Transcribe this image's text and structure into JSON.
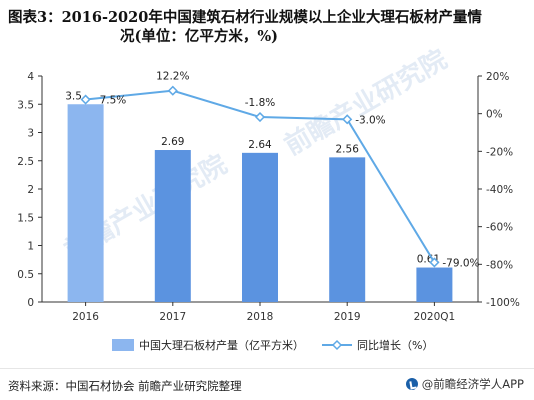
{
  "title": {
    "line1": "图表3：2016-2020年中国建筑石材行业规模以上企业大理石板材产量情",
    "line2": "况(单位：亿平方米，%)"
  },
  "source_text": "资料来源：中国石材协会 前瞻产业研究院整理",
  "brand_text": "@前瞻经济学人APP",
  "watermark": "前瞻产业研究院",
  "colors": {
    "bar": "#5b93e0",
    "bar_light": "#8cb6ef",
    "line": "#5fa9e6",
    "marker_fill": "#ffffff",
    "axis": "#333333",
    "tick_text": "#333333"
  },
  "chart_data": {
    "type": "bar",
    "categories": [
      "2016",
      "2017",
      "2018",
      "2019",
      "2020Q1"
    ],
    "series": [
      {
        "name": "中国大理石板材产量（亿平方米）",
        "kind": "bar",
        "axis": "left",
        "values": [
          3.5,
          2.69,
          2.64,
          2.56,
          0.61
        ],
        "labels": [
          "3.5",
          "2.69",
          "2.64",
          "2.56",
          "0.61"
        ]
      },
      {
        "name": "同比增长（%）",
        "kind": "line",
        "axis": "right",
        "values": [
          7.5,
          12.2,
          -1.8,
          -3.0,
          -79.0
        ],
        "labels": [
          "7.5%",
          "12.2%",
          "-1.8%",
          "-3.0%",
          "-79.0%"
        ]
      }
    ],
    "y_left": {
      "min": 0,
      "max": 4,
      "ticks": [
        "0",
        "0.5",
        "1",
        "1.5",
        "2",
        "2.5",
        "3",
        "3.5",
        "4"
      ]
    },
    "y_right": {
      "min": -100,
      "max": 20,
      "ticks": [
        "-100%",
        "-80%",
        "-60%",
        "-40%",
        "-20%",
        "0%",
        "20%"
      ]
    },
    "legend": {
      "position": "bottom"
    },
    "grid": false
  }
}
